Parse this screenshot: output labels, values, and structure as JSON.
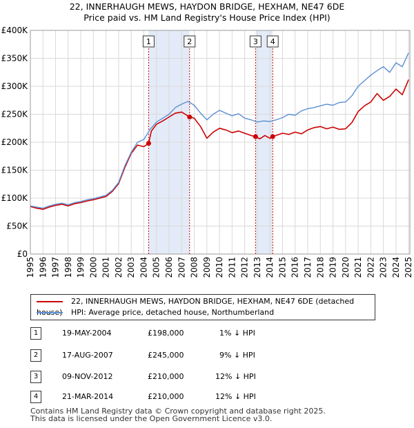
{
  "title_line1": "22, INNERHAUGH MEWS, HAYDON BRIDGE, HEXHAM, NE47 6DE",
  "title_line2": "Price paid vs. HM Land Registry's House Price Index (HPI)",
  "chart_data": {
    "type": "line",
    "xlim": [
      1995,
      2025.1
    ],
    "ylim": [
      0,
      400000
    ],
    "yticks": [
      0,
      50000,
      100000,
      150000,
      200000,
      250000,
      300000,
      350000,
      400000
    ],
    "ytick_labels": [
      "£0",
      "£50K",
      "£100K",
      "£150K",
      "£200K",
      "£250K",
      "£300K",
      "£350K",
      "£400K"
    ],
    "xticks": [
      1995,
      1996,
      1997,
      1998,
      1999,
      2000,
      2001,
      2002,
      2003,
      2004,
      2005,
      2006,
      2007,
      2008,
      2009,
      2010,
      2011,
      2012,
      2013,
      2014,
      2015,
      2016,
      2017,
      2018,
      2019,
      2020,
      2021,
      2022,
      2023,
      2024,
      2025
    ],
    "xtick_labels": [
      "1995",
      "1996",
      "1997",
      "1998",
      "1999",
      "2000",
      "2001",
      "2002",
      "2003",
      "2004",
      "2005",
      "2006",
      "2007",
      "2008",
      "2009",
      "2010",
      "2011",
      "2012",
      "2013",
      "2014",
      "2015",
      "2016",
      "2017",
      "2018",
      "2019",
      "2020",
      "2021",
      "2022",
      "2023",
      "2024",
      "2025"
    ],
    "grid": true,
    "shaded_ranges": [
      [
        2004.38,
        2007.63
      ],
      [
        2012.86,
        2014.22
      ]
    ],
    "series": [
      {
        "name": "22, INNERHAUGH MEWS, HAYDON BRIDGE, HEXHAM, NE47 6DE (detached house)",
        "color": "#cc0000",
        "x": [
          1995,
          1995.5,
          1996,
          1996.5,
          1997,
          1997.5,
          1998,
          1998.5,
          1999,
          1999.5,
          2000,
          2000.5,
          2001,
          2001.5,
          2002,
          2002.5,
          2003,
          2003.5,
          2004,
          2004.38,
          2004.6,
          2005,
          2005.5,
          2006,
          2006.5,
          2007,
          2007.63,
          2008,
          2008.5,
          2009,
          2009.5,
          2010,
          2010.5,
          2011,
          2011.5,
          2012,
          2012.5,
          2012.86,
          2013.2,
          2013.6,
          2014,
          2014.22,
          2014.6,
          2015,
          2015.5,
          2016,
          2016.5,
          2017,
          2017.5,
          2018,
          2018.5,
          2019,
          2019.5,
          2020,
          2020.5,
          2021,
          2021.5,
          2022,
          2022.5,
          2023,
          2023.5,
          2024,
          2024.5,
          2025
        ],
        "values": [
          85000,
          82000,
          80000,
          84000,
          87000,
          89000,
          86000,
          90000,
          92000,
          95000,
          97000,
          100000,
          103000,
          112000,
          126000,
          155000,
          180000,
          195000,
          192000,
          198000,
          220000,
          232000,
          238000,
          245000,
          252000,
          254000,
          245000,
          243000,
          228000,
          207000,
          218000,
          225000,
          222000,
          217000,
          220000,
          216000,
          212000,
          210000,
          206000,
          212000,
          207000,
          210000,
          213000,
          216000,
          214000,
          218000,
          215000,
          222000,
          226000,
          228000,
          224000,
          227000,
          223000,
          224000,
          235000,
          255000,
          265000,
          272000,
          287000,
          275000,
          282000,
          295000,
          285000,
          312000
        ]
      },
      {
        "name": "HPI: Average price, detached house, Northumberland",
        "color": "#5b8fd4",
        "x": [
          1995,
          1995.5,
          1996,
          1996.5,
          1997,
          1997.5,
          1998,
          1998.5,
          1999,
          1999.5,
          2000,
          2000.5,
          2001,
          2001.5,
          2002,
          2002.5,
          2003,
          2003.5,
          2004,
          2004.5,
          2005,
          2005.5,
          2006,
          2006.5,
          2007,
          2007.5,
          2008,
          2008.5,
          2009,
          2009.5,
          2010,
          2010.5,
          2011,
          2011.5,
          2012,
          2012.5,
          2013,
          2013.5,
          2014,
          2014.5,
          2015,
          2015.5,
          2016,
          2016.5,
          2017,
          2017.5,
          2018,
          2018.5,
          2019,
          2019.5,
          2020,
          2020.5,
          2021,
          2021.5,
          2022,
          2022.5,
          2023,
          2023.5,
          2024,
          2024.5,
          2025
        ],
        "values": [
          86000,
          84000,
          82000,
          86000,
          89000,
          91000,
          88000,
          92000,
          94000,
          97000,
          99000,
          102000,
          105000,
          114000,
          128000,
          158000,
          182000,
          200000,
          205000,
          223000,
          236000,
          243000,
          250000,
          262000,
          268000,
          273000,
          266000,
          252000,
          240000,
          250000,
          257000,
          252000,
          247000,
          251000,
          243000,
          240000,
          236000,
          238000,
          237000,
          240000,
          244000,
          250000,
          248000,
          256000,
          260000,
          262000,
          265000,
          268000,
          266000,
          271000,
          272000,
          283000,
          300000,
          310000,
          320000,
          328000,
          335000,
          325000,
          342000,
          335000,
          360000
        ]
      }
    ],
    "sales": [
      {
        "n": "1",
        "x": 2004.38,
        "value": 198000
      },
      {
        "n": "2",
        "x": 2007.63,
        "value": 245000
      },
      {
        "n": "3",
        "x": 2012.86,
        "value": 210000
      },
      {
        "n": "4",
        "x": 2014.22,
        "value": 210000
      }
    ]
  },
  "legend": {
    "property_label": "22, INNERHAUGH MEWS, HAYDON BRIDGE, HEXHAM, NE47 6DE (detached house)",
    "hpi_label": "HPI: Average price, detached house, Northumberland",
    "property_color": "#cc0000",
    "hpi_color": "#5b8fd4"
  },
  "transactions": [
    {
      "n": "1",
      "date": "19-MAY-2004",
      "price": "£198,000",
      "hpi": "1% ↓ HPI"
    },
    {
      "n": "2",
      "date": "17-AUG-2007",
      "price": "£245,000",
      "hpi": "9% ↓ HPI"
    },
    {
      "n": "3",
      "date": "09-NOV-2012",
      "price": "£210,000",
      "hpi": "12% ↓ HPI"
    },
    {
      "n": "4",
      "date": "21-MAR-2014",
      "price": "£210,000",
      "hpi": "12% ↓ HPI"
    }
  ],
  "footer_line1": "Contains HM Land Registry data © Crown copyright and database right 2025.",
  "footer_line2": "This data is licensed under the Open Government Licence v3.0."
}
